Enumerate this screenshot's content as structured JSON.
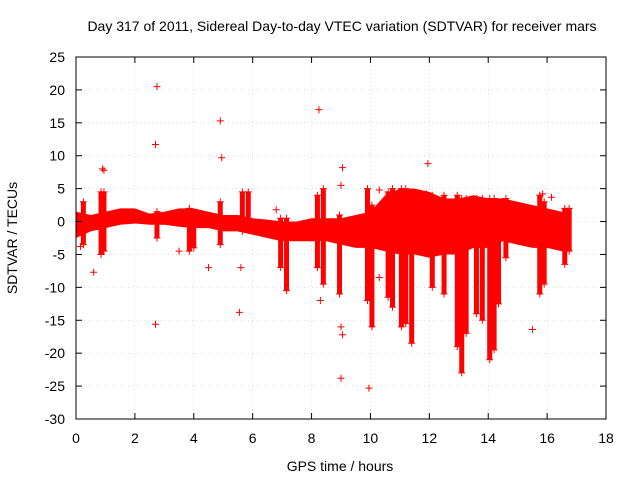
{
  "chart_data": {
    "type": "scatter",
    "title": "Day 317 of 2011, Sidereal Day-to-day VTEC variation (SDTVAR) for receiver mars",
    "xlabel": "GPS time / hours",
    "ylabel": "SDTVAR / TECUs",
    "xlim": [
      0,
      18
    ],
    "ylim": [
      -30,
      25
    ],
    "xticks": [
      0,
      2,
      4,
      6,
      8,
      10,
      12,
      14,
      16,
      18
    ],
    "yticks": [
      -30,
      -25,
      -20,
      -15,
      -10,
      -5,
      0,
      5,
      10,
      15,
      20,
      25
    ],
    "grid": true,
    "marker": "+",
    "color": "#ff0000",
    "dense_band": [
      {
        "x": 0.0,
        "low": -2.5,
        "high": 1.5
      },
      {
        "x": 0.5,
        "low": -1.5,
        "high": 1.0
      },
      {
        "x": 1.0,
        "low": -1.0,
        "high": 1.5
      },
      {
        "x": 1.5,
        "low": -0.5,
        "high": 2.0
      },
      {
        "x": 2.0,
        "low": -0.3,
        "high": 2.0
      },
      {
        "x": 2.5,
        "low": -0.5,
        "high": 1.2
      },
      {
        "x": 3.0,
        "low": -0.5,
        "high": 1.5
      },
      {
        "x": 3.5,
        "low": -0.8,
        "high": 2.0
      },
      {
        "x": 4.0,
        "low": -1.0,
        "high": 2.0
      },
      {
        "x": 4.5,
        "low": -1.0,
        "high": 1.5
      },
      {
        "x": 5.0,
        "low": -1.5,
        "high": 1.0
      },
      {
        "x": 5.5,
        "low": -1.5,
        "high": 1.0
      },
      {
        "x": 6.0,
        "low": -2.0,
        "high": 0.5
      },
      {
        "x": 6.5,
        "low": -2.5,
        "high": 0.3
      },
      {
        "x": 7.0,
        "low": -3.0,
        "high": 0.0
      },
      {
        "x": 7.5,
        "low": -3.0,
        "high": 0.0
      },
      {
        "x": 8.0,
        "low": -3.0,
        "high": 0.5
      },
      {
        "x": 8.5,
        "low": -3.0,
        "high": 0.5
      },
      {
        "x": 9.0,
        "low": -3.5,
        "high": 0.5
      },
      {
        "x": 9.5,
        "low": -4.0,
        "high": 1.0
      },
      {
        "x": 10.0,
        "low": -4.0,
        "high": 1.5
      },
      {
        "x": 10.5,
        "low": -4.5,
        "high": 4.0
      },
      {
        "x": 11.0,
        "low": -5.0,
        "high": 5.0
      },
      {
        "x": 11.5,
        "low": -5.0,
        "high": 5.0
      },
      {
        "x": 12.0,
        "low": -5.5,
        "high": 4.5
      },
      {
        "x": 12.5,
        "low": -5.0,
        "high": 3.5
      },
      {
        "x": 13.0,
        "low": -5.0,
        "high": 3.5
      },
      {
        "x": 13.5,
        "low": -4.0,
        "high": 4.0
      },
      {
        "x": 14.0,
        "low": -4.0,
        "high": 3.5
      },
      {
        "x": 14.5,
        "low": -3.0,
        "high": 3.5
      },
      {
        "x": 15.0,
        "low": -3.5,
        "high": 3.0
      },
      {
        "x": 15.5,
        "low": -4.0,
        "high": 2.5
      },
      {
        "x": 16.0,
        "low": -4.0,
        "high": 2.0
      },
      {
        "x": 16.5,
        "low": -4.5,
        "high": 1.5
      },
      {
        "x": 16.8,
        "low": -4.5,
        "high": 1.5
      }
    ],
    "streaks": [
      {
        "x": 0.25,
        "top": 3.0,
        "bottom": -3.5
      },
      {
        "x": 0.85,
        "top": 4.5,
        "bottom": -5.0
      },
      {
        "x": 0.95,
        "top": 4.5,
        "bottom": -4.5
      },
      {
        "x": 2.75,
        "top": 1.5,
        "bottom": -2.5
      },
      {
        "x": 3.85,
        "top": 2.0,
        "bottom": -4.5
      },
      {
        "x": 4.0,
        "top": 1.0,
        "bottom": -4.0
      },
      {
        "x": 4.9,
        "top": 3.0,
        "bottom": -3.5
      },
      {
        "x": 5.65,
        "top": 4.5,
        "bottom": -1.5
      },
      {
        "x": 5.85,
        "top": 4.5,
        "bottom": -1.0
      },
      {
        "x": 6.95,
        "top": 0.5,
        "bottom": -7.0
      },
      {
        "x": 7.15,
        "top": 0.5,
        "bottom": -10.5
      },
      {
        "x": 8.2,
        "top": 4.0,
        "bottom": -7.0
      },
      {
        "x": 8.4,
        "top": 5.0,
        "bottom": -9.5
      },
      {
        "x": 8.95,
        "top": 1.0,
        "bottom": -11.0
      },
      {
        "x": 9.9,
        "top": 5.0,
        "bottom": -12.0
      },
      {
        "x": 10.05,
        "top": 2.5,
        "bottom": -16.0
      },
      {
        "x": 10.6,
        "top": 4.5,
        "bottom": -11.5
      },
      {
        "x": 10.75,
        "top": 5.0,
        "bottom": -13.0
      },
      {
        "x": 11.05,
        "top": 5.0,
        "bottom": -16.0
      },
      {
        "x": 11.2,
        "top": 5.0,
        "bottom": -15.5
      },
      {
        "x": 11.4,
        "top": 4.5,
        "bottom": -18.5
      },
      {
        "x": 12.1,
        "top": 4.0,
        "bottom": -10.0
      },
      {
        "x": 12.5,
        "top": 4.0,
        "bottom": -11.0
      },
      {
        "x": 12.95,
        "top": 4.0,
        "bottom": -19.0
      },
      {
        "x": 13.1,
        "top": 3.5,
        "bottom": -23.0
      },
      {
        "x": 13.25,
        "top": 3.5,
        "bottom": -17.0
      },
      {
        "x": 13.6,
        "top": 3.5,
        "bottom": -14.0
      },
      {
        "x": 13.8,
        "top": 3.5,
        "bottom": -15.0
      },
      {
        "x": 14.05,
        "top": 3.5,
        "bottom": -21.0
      },
      {
        "x": 14.2,
        "top": 3.5,
        "bottom": -19.5
      },
      {
        "x": 14.35,
        "top": 3.0,
        "bottom": -12.5
      },
      {
        "x": 14.6,
        "top": 3.5,
        "bottom": -5.5
      },
      {
        "x": 15.75,
        "top": 4.0,
        "bottom": -11.0
      },
      {
        "x": 15.9,
        "top": 3.0,
        "bottom": -9.5
      },
      {
        "x": 16.6,
        "top": 2.0,
        "bottom": -6.5
      },
      {
        "x": 16.75,
        "top": 2.0,
        "bottom": -4.5
      }
    ],
    "outlier_points": [
      {
        "x": 2.75,
        "y": 20.5
      },
      {
        "x": 2.7,
        "y": 11.7
      },
      {
        "x": 2.7,
        "y": -15.6
      },
      {
        "x": 4.9,
        "y": 15.3
      },
      {
        "x": 4.95,
        "y": 9.7
      },
      {
        "x": 4.5,
        "y": -7.0
      },
      {
        "x": 5.6,
        "y": -7.0
      },
      {
        "x": 5.55,
        "y": -13.8
      },
      {
        "x": 8.25,
        "y": 17.0
      },
      {
        "x": 9.05,
        "y": 8.2
      },
      {
        "x": 9.0,
        "y": 5.5
      },
      {
        "x": 8.3,
        "y": -12.0
      },
      {
        "x": 9.0,
        "y": -16.0
      },
      {
        "x": 9.05,
        "y": -17.2
      },
      {
        "x": 9.0,
        "y": -23.8
      },
      {
        "x": 9.95,
        "y": -25.3
      },
      {
        "x": 10.3,
        "y": 4.8
      },
      {
        "x": 11.95,
        "y": 8.8
      },
      {
        "x": 11.9,
        "y": 4.2
      },
      {
        "x": 10.3,
        "y": -8.5
      },
      {
        "x": 0.9,
        "y": 8.0
      },
      {
        "x": 0.95,
        "y": 7.8
      },
      {
        "x": 0.6,
        "y": -7.7
      },
      {
        "x": 0.15,
        "y": -3.8
      },
      {
        "x": 3.5,
        "y": -4.5
      },
      {
        "x": 15.5,
        "y": -16.4
      },
      {
        "x": 16.15,
        "y": 3.7
      },
      {
        "x": 15.85,
        "y": 4.2
      },
      {
        "x": 6.8,
        "y": 1.8
      }
    ]
  }
}
